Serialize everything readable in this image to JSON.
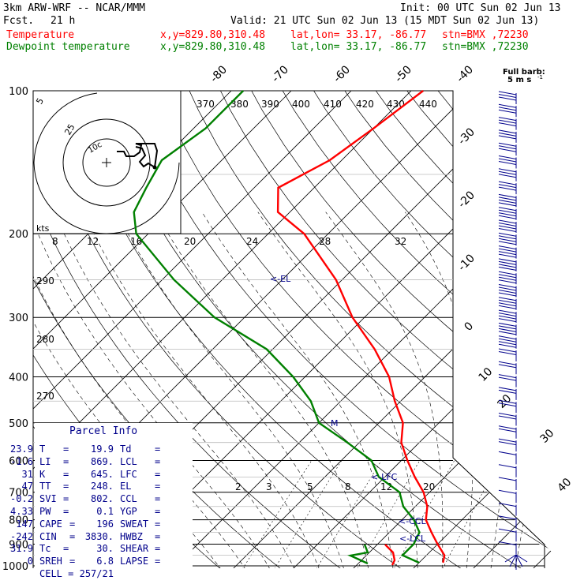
{
  "header": {
    "model": "3km ARW-WRF -- NCAR/MMM",
    "fcst_label": "Fcst.",
    "fcst_value": "21 h",
    "init": "Init: 00 UTC Sun 02 Jun 13",
    "valid": "Valid: 21 UTC Sun 02 Jun 13 (15 MDT Sun 02 Jun 13)",
    "temp_label": "Temperature",
    "dew_label": "Dewpoint temperature",
    "xy": "x,y=829.80,310.48",
    "latlon": "lat,lon= 33.17, -86.77",
    "stn": "stn=BMX ,72230"
  },
  "colors": {
    "temperature": "#ff0000",
    "dewpoint": "#008000",
    "annot": "#00008b",
    "grid": "#000000"
  },
  "barb_legend": {
    "title": "Full barb:",
    "value": "5 m s",
    "exp": "-1"
  },
  "parcel": {
    "title": "Parcel Info",
    "rows": [
      [
        "T",
        "23.9",
        "Td",
        "19.9"
      ],
      [
        "LI",
        "-1.6",
        "LCL",
        "869."
      ],
      [
        "K",
        "31",
        "LFC",
        "645."
      ],
      [
        "TT",
        "47",
        "EL",
        "248."
      ],
      [
        "SVI",
        "-0.2",
        "CCL",
        "802."
      ],
      [
        "PW",
        "4.33",
        "YGP",
        "0.1"
      ],
      [
        "CAPE",
        "147",
        "SWEAT",
        "196"
      ],
      [
        "CIN",
        "-242",
        "HWBZ",
        "3830."
      ],
      [
        "Tc",
        "31.9",
        "SHEAR",
        "30."
      ],
      [
        "SREH",
        "0",
        "LAPSE",
        "6.8"
      ]
    ],
    "cell_label": "CELL",
    "cell_value": "257/21"
  },
  "hodograph": {
    "speed_unit": "kts",
    "ring_labels": [
      "5",
      "25",
      "10c"
    ]
  },
  "levels": {
    "el": "<-EL",
    "lfc": "<-LFC",
    "ccl": "<-CCL",
    "lcl": "<-LCL",
    "m": "M"
  },
  "chart_data": {
    "type": "line",
    "x_axis": "temperature (°C), skewed",
    "y_axis": "pressure (hPa), log scale",
    "ylim": [
      1000,
      100
    ],
    "pressure_ticks": [
      "100",
      "200",
      "300",
      "400",
      "500",
      "600",
      "700",
      "800",
      "900",
      "1000"
    ],
    "isotherm_labels": [
      "-80",
      "-70",
      "-60",
      "-50",
      "-40",
      "-30",
      "-20",
      "-10",
      "0",
      "10",
      "20",
      "30",
      "40"
    ],
    "theta_labels": [
      "370",
      "380",
      "390",
      "400",
      "410",
      "420",
      "430",
      "440"
    ],
    "theta_side_labels": [
      "290",
      "280",
      "270"
    ],
    "mixing_ratio_labels": [
      "2",
      "3",
      "5",
      "8",
      "12",
      "20"
    ],
    "upper_mixing_labels": [
      "8",
      "12",
      "16",
      "20",
      "24",
      "28",
      "32"
    ],
    "series": [
      {
        "name": "Temperature",
        "points": [
          [
            100,
            -58
          ],
          [
            120,
            -60
          ],
          [
            140,
            -62
          ],
          [
            160,
            -66
          ],
          [
            180,
            -62
          ],
          [
            200,
            -54
          ],
          [
            250,
            -41
          ],
          [
            300,
            -32
          ],
          [
            350,
            -23
          ],
          [
            400,
            -16
          ],
          [
            450,
            -11
          ],
          [
            500,
            -6
          ],
          [
            550,
            -3
          ],
          [
            600,
            1
          ],
          [
            650,
            5
          ],
          [
            700,
            9
          ],
          [
            750,
            12
          ],
          [
            800,
            14
          ],
          [
            850,
            17
          ],
          [
            900,
            20
          ],
          [
            950,
            23
          ],
          [
            985,
            24
          ]
        ]
      },
      {
        "name": "Dewpoint temperature",
        "points": [
          [
            100,
            -88
          ],
          [
            120,
            -88
          ],
          [
            140,
            -90
          ],
          [
            160,
            -88
          ],
          [
            180,
            -86
          ],
          [
            200,
            -82
          ],
          [
            250,
            -68
          ],
          [
            300,
            -55
          ],
          [
            350,
            -41
          ],
          [
            400,
            -32
          ],
          [
            450,
            -25
          ],
          [
            500,
            -20
          ],
          [
            550,
            -12
          ],
          [
            600,
            -5
          ],
          [
            650,
            -1
          ],
          [
            700,
            5
          ],
          [
            750,
            8
          ],
          [
            800,
            12
          ],
          [
            850,
            15
          ],
          [
            900,
            16
          ],
          [
            950,
            16
          ],
          [
            985,
            20
          ]
        ]
      }
    ]
  }
}
